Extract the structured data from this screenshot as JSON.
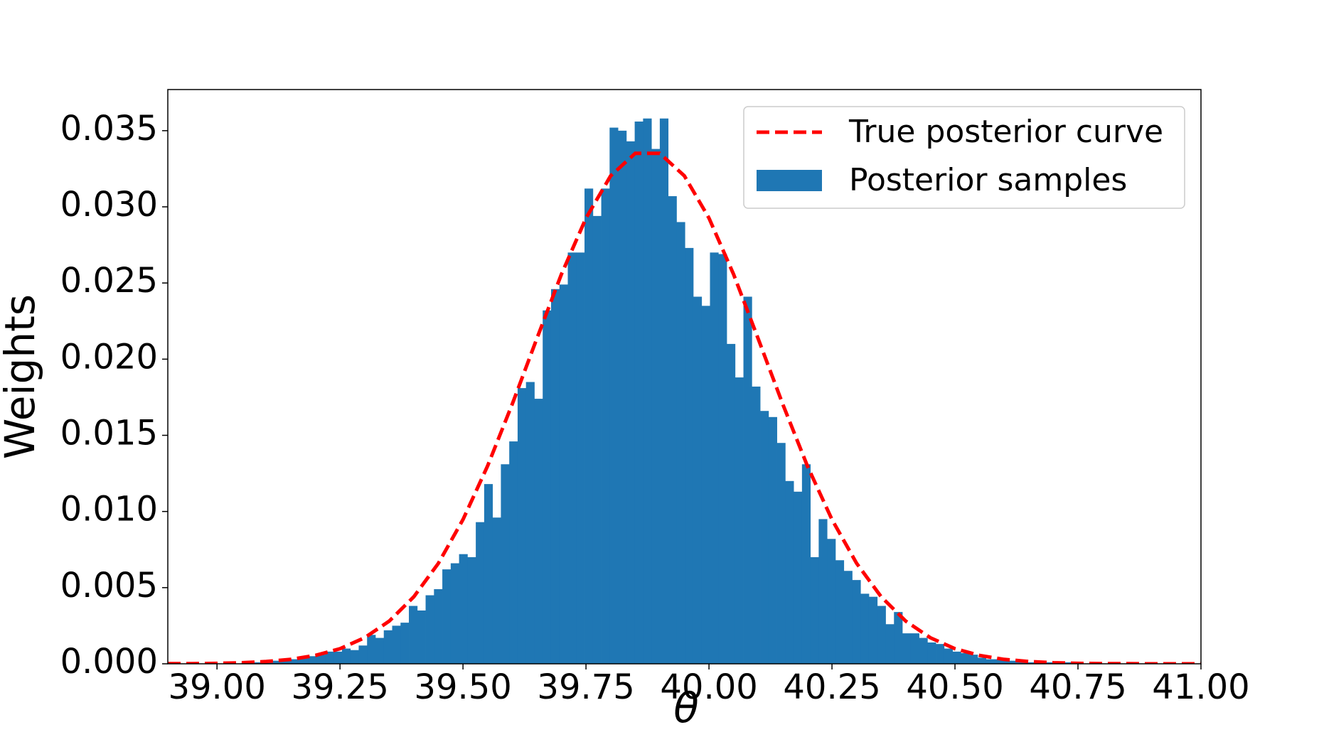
{
  "chart_data": {
    "type": "histogram",
    "xlabel": "θ",
    "ylabel": "Weights",
    "xlim": [
      38.9,
      41.0
    ],
    "ylim": [
      0,
      0.0377
    ],
    "xticks": [
      {
        "value": 39,
        "label": "39.00"
      },
      {
        "value": 39.25,
        "label": "39.25"
      },
      {
        "value": 39.5,
        "label": "39.50"
      },
      {
        "value": 39.75,
        "label": "39.75"
      },
      {
        "value": 40,
        "label": "40.00"
      },
      {
        "value": 40.25,
        "label": "40.25"
      },
      {
        "value": 40.5,
        "label": "40.50"
      },
      {
        "value": 40.75,
        "label": "40.75"
      },
      {
        "value": 41,
        "label": "41.00"
      }
    ],
    "yticks": [
      {
        "value": 0,
        "label": "0.000"
      },
      {
        "value": 0.005,
        "label": "0.005"
      },
      {
        "value": 0.01,
        "label": "0.010"
      },
      {
        "value": 0.015,
        "label": "0.015"
      },
      {
        "value": 0.02,
        "label": "0.020"
      },
      {
        "value": 0.025,
        "label": "0.025"
      },
      {
        "value": 0.03,
        "label": "0.030"
      },
      {
        "value": 0.035,
        "label": "0.035"
      }
    ],
    "legend": "upper right",
    "series": [
      {
        "name": "True posterior curve",
        "type": "line",
        "color": "#ff0000",
        "dashed": true,
        "x": [
          38.9,
          38.95,
          39.0,
          39.05,
          39.1,
          39.15,
          39.2,
          39.25,
          39.3,
          39.35,
          39.4,
          39.45,
          39.5,
          39.55,
          39.6,
          39.65,
          39.7,
          39.75,
          39.8,
          39.85,
          39.9,
          39.95,
          40.0,
          40.05,
          40.1,
          40.15,
          40.2,
          40.25,
          40.3,
          40.35,
          40.4,
          40.45,
          40.5,
          40.55,
          40.6,
          40.65,
          40.7,
          40.75,
          40.8,
          40.85,
          40.9,
          40.95,
          41.0
        ],
        "values": [
          1e-05,
          1e-05,
          3e-05,
          7e-05,
          0.00015,
          0.00029,
          0.00055,
          0.00099,
          0.00171,
          0.0028,
          0.0044,
          0.0066,
          0.00947,
          0.01299,
          0.01704,
          0.02134,
          0.02557,
          0.02926,
          0.03203,
          0.03351,
          0.03351,
          0.03203,
          0.02926,
          0.02557,
          0.02134,
          0.01704,
          0.01299,
          0.00947,
          0.0066,
          0.0044,
          0.0028,
          0.00171,
          0.00099,
          0.00055,
          0.00029,
          0.00015,
          7e-05,
          3e-05,
          1e-05,
          1e-05,
          0,
          0,
          0
        ]
      },
      {
        "name": "Posterior samples",
        "type": "histogram",
        "color": "#1f77b4",
        "bins": [
          39.05,
          39.067,
          39.084,
          39.101,
          39.118,
          39.135,
          39.152,
          39.169,
          39.186,
          39.203,
          39.22,
          39.237,
          39.254,
          39.271,
          39.288,
          39.305,
          39.322,
          39.339,
          39.356,
          39.373,
          39.39,
          39.407,
          39.424,
          39.441,
          39.458,
          39.475,
          39.492,
          39.509,
          39.526,
          39.543,
          39.56,
          39.577,
          39.594,
          39.611,
          39.628,
          39.645,
          39.662,
          39.679,
          39.696,
          39.713,
          39.73,
          39.747,
          39.764,
          39.781,
          39.798,
          39.815,
          39.832,
          39.849,
          39.866,
          39.883,
          39.9,
          39.917,
          39.934,
          39.951,
          39.968,
          39.985,
          40.002,
          40.019,
          40.036,
          40.053,
          40.07,
          40.087,
          40.104,
          40.121,
          40.138,
          40.155,
          40.172,
          40.189,
          40.206,
          40.223,
          40.24,
          40.257,
          40.274,
          40.291,
          40.308,
          40.325,
          40.342,
          40.359,
          40.376,
          40.393,
          40.41,
          40.427,
          40.444,
          40.461,
          40.478,
          40.495,
          40.512,
          40.529,
          40.546,
          40.563,
          40.58,
          40.597,
          40.614,
          40.631,
          40.648,
          40.665,
          40.682,
          40.699,
          40.716,
          40.733,
          40.75
        ],
        "values": [
          0.0001,
          0.0001,
          0.0001,
          0.0002,
          0.0002,
          0.0003,
          0.0003,
          0.0004,
          0.0005,
          0.0006,
          0.0008,
          0.0008,
          0.001,
          0.0009,
          0.0012,
          0.0019,
          0.0017,
          0.0022,
          0.0025,
          0.0027,
          0.0038,
          0.0035,
          0.0045,
          0.0049,
          0.0062,
          0.0066,
          0.0072,
          0.007,
          0.0093,
          0.0118,
          0.0096,
          0.0131,
          0.0146,
          0.0181,
          0.0185,
          0.0174,
          0.0232,
          0.0246,
          0.0249,
          0.027,
          0.027,
          0.0312,
          0.0294,
          0.0312,
          0.0352,
          0.035,
          0.0343,
          0.0356,
          0.0358,
          0.0338,
          0.0358,
          0.0307,
          0.029,
          0.0273,
          0.0241,
          0.0235,
          0.027,
          0.0269,
          0.021,
          0.0188,
          0.0241,
          0.0182,
          0.0166,
          0.0162,
          0.0145,
          0.012,
          0.0113,
          0.0131,
          0.007,
          0.0095,
          0.0082,
          0.0068,
          0.0061,
          0.0055,
          0.0046,
          0.0044,
          0.0038,
          0.0026,
          0.0034,
          0.002,
          0.002,
          0.0017,
          0.0014,
          0.0013,
          0.001,
          0.0008,
          0.0007,
          0.0006,
          0.0004,
          0.0003,
          0.0003,
          0.0002,
          0.0002,
          0.0002,
          0.0001,
          0.0001,
          0.0001,
          0.0001,
          0.0001,
          0.0001
        ]
      }
    ]
  }
}
